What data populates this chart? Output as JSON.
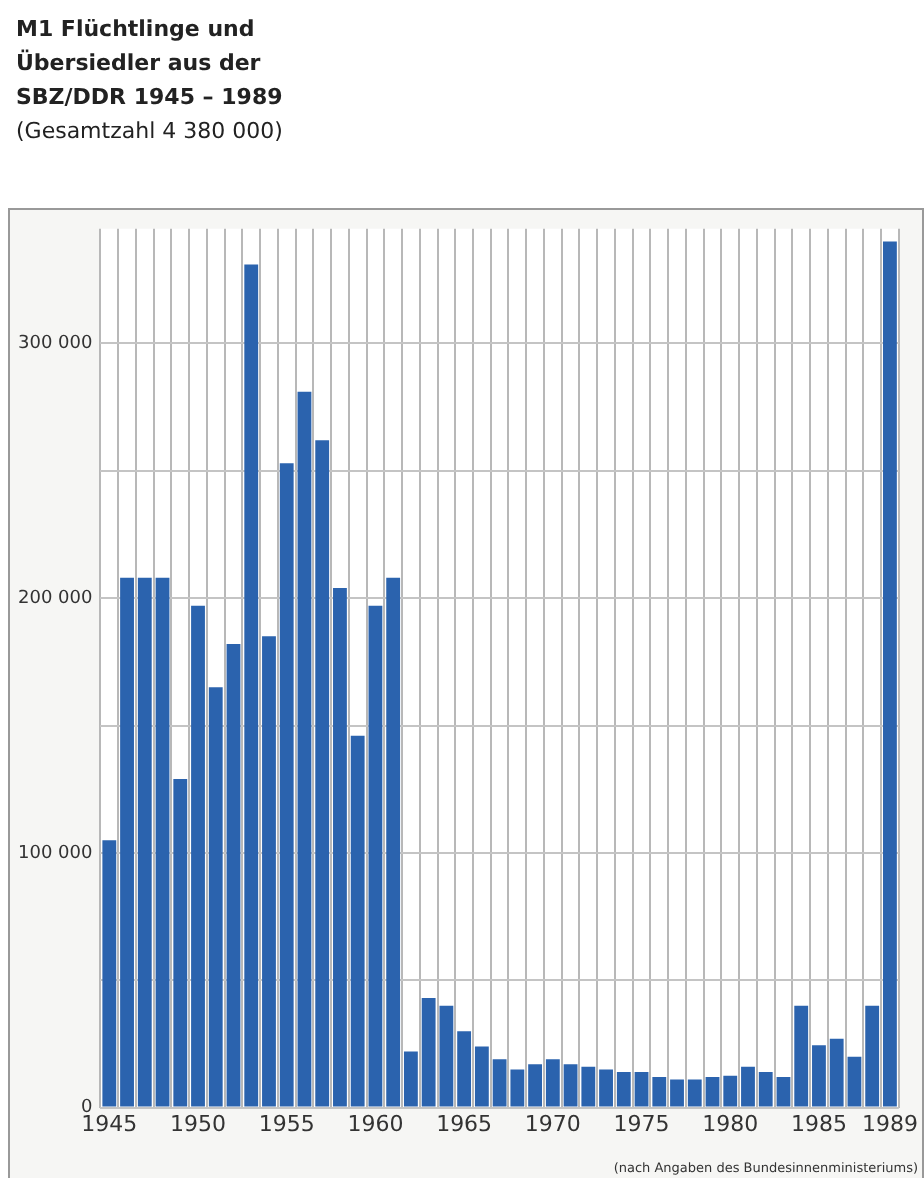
{
  "chart_data": {
    "type": "bar",
    "title": "M1 Flüchtlinge und Übersiedler aus der SBZ/DDR 1945 – 1989",
    "subtitle": "(Gesamtzahl 4 380 000)",
    "categories": [
      "1945",
      null,
      null,
      null,
      null,
      "1950",
      null,
      null,
      null,
      null,
      "1955",
      null,
      null,
      null,
      null,
      "1960",
      null,
      null,
      null,
      null,
      "1965",
      null,
      null,
      null,
      null,
      "1970",
      null,
      null,
      null,
      null,
      "1975",
      null,
      null,
      null,
      null,
      "1980",
      null,
      null,
      null,
      null,
      "1985",
      null,
      null,
      null,
      "1989"
    ],
    "values": [
      105000,
      208000,
      208000,
      208000,
      129000,
      197000,
      165000,
      182000,
      331000,
      185000,
      253000,
      281000,
      262000,
      204000,
      146000,
      197000,
      208000,
      22000,
      43000,
      40000,
      30000,
      24000,
      19000,
      15000,
      17000,
      19000,
      17000,
      16000,
      15000,
      14000,
      14000,
      12000,
      11000,
      11000,
      12000,
      12500,
      16000,
      14000,
      12000,
      40000,
      24500,
      27000,
      20000,
      40000,
      340000
    ],
    "color": "#2b63ae",
    "ylim": [
      0,
      345000
    ],
    "yticks": [
      0,
      {
        "value": 50000,
        "label": null
      },
      {
        "value": 100000,
        "label": "100 000"
      },
      {
        "value": 150000,
        "label": null
      },
      {
        "value": 200000,
        "label": "200 000"
      },
      {
        "value": 250000,
        "label": null
      },
      {
        "value": 300000,
        "label": "300 000"
      }
    ],
    "grid": true,
    "annotations": [
      "(nach Angaben des Bundesinnenministeriums)"
    ]
  }
}
